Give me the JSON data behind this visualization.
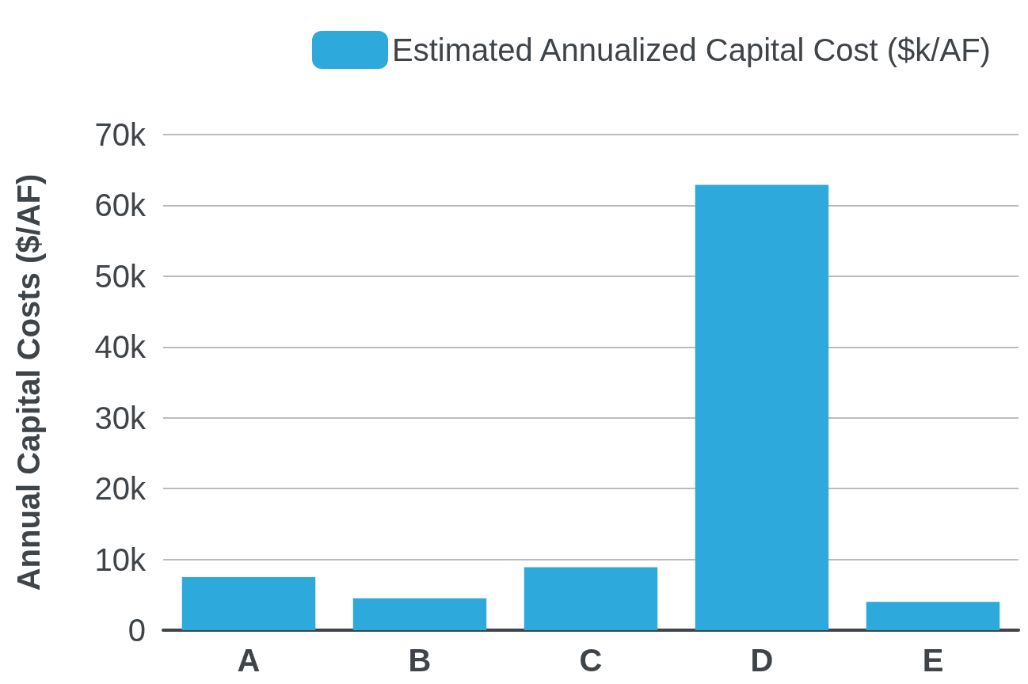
{
  "chart_data": {
    "type": "bar",
    "ylabel": "Annual Capital Costs ($/AF)",
    "categories": [
      "A",
      "B",
      "C",
      "D",
      "E"
    ],
    "series": [
      {
        "name": "Estimated Annualized Capital Cost ($k/AF)",
        "color": "#2ea9dc",
        "values": [
          7500,
          4500,
          8900,
          62900,
          4000
        ]
      }
    ],
    "ylim": [
      0,
      70000
    ],
    "yticks": [
      {
        "value": 0,
        "label": "0"
      },
      {
        "value": 10000,
        "label": "10k"
      },
      {
        "value": 20000,
        "label": "20k"
      },
      {
        "value": 30000,
        "label": "30k"
      },
      {
        "value": 40000,
        "label": "40k"
      },
      {
        "value": 50000,
        "label": "50k"
      },
      {
        "value": 60000,
        "label": "60k"
      },
      {
        "value": 70000,
        "label": "70k"
      }
    ],
    "grid": "y",
    "legend": "top right"
  }
}
